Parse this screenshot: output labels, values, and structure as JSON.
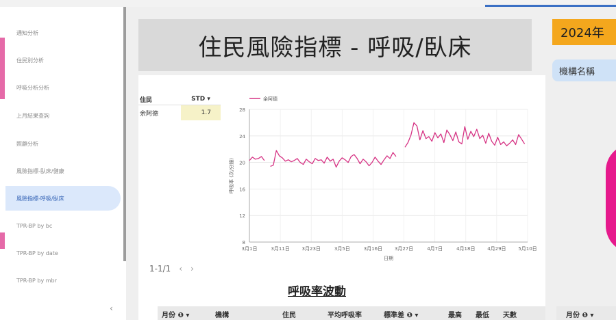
{
  "sidebar": {
    "items": [
      {
        "label": "通知分析"
      },
      {
        "label": "住民別分析"
      },
      {
        "label": "呼吸分析分析"
      },
      {
        "label": "上月結果查詢"
      },
      {
        "label": "照顧分析"
      },
      {
        "label": "風險指標-臥床/健康"
      },
      {
        "label": "風險指標-呼吸/臥床"
      },
      {
        "label": "TPR-BP by bc"
      },
      {
        "label": "TPR-BP by date"
      },
      {
        "label": "TPR-BP by mbr"
      }
    ],
    "collapse_icon": "‹"
  },
  "header": {
    "title": "住民風險指標 - 呼吸/臥床",
    "year": "2024年",
    "org_button": "機構名稱"
  },
  "mini_table": {
    "headers": [
      "住民",
      "STD ▾"
    ],
    "rows": [
      {
        "name": "余阿德",
        "std": "1.7"
      }
    ]
  },
  "pager": {
    "label": "1-1/1",
    "prev": "‹",
    "next": "›"
  },
  "chart_data": {
    "type": "line",
    "legend": "余阿德",
    "xlabel": "日期",
    "ylabel": "呼吸率 (次/分鐘)",
    "ylim": [
      8,
      28
    ],
    "yticks": [
      "8",
      "12",
      "16",
      "20",
      "24",
      "28"
    ],
    "xticks": [
      "3月1日",
      "3月11日",
      "3月23日",
      "3月5日",
      "3月16日",
      "3月27日",
      "4月7日",
      "4月18日",
      "4月29日",
      "5月10日"
    ],
    "segments": [
      [
        [
          0,
          20.3
        ],
        [
          1,
          20.8
        ],
        [
          2,
          20.5
        ],
        [
          3,
          20.6
        ],
        [
          4,
          20.9
        ],
        [
          5,
          20.3
        ]
      ],
      [
        [
          7,
          19.4
        ],
        [
          8,
          19.6
        ],
        [
          9,
          21.8
        ],
        [
          10,
          21.0
        ],
        [
          11,
          20.7
        ],
        [
          12,
          20.2
        ],
        [
          13,
          20.4
        ],
        [
          14,
          20.1
        ],
        [
          15,
          20.3
        ],
        [
          16,
          20.6
        ],
        [
          17,
          20.0
        ],
        [
          18,
          19.7
        ],
        [
          19,
          20.5
        ],
        [
          20,
          20.1
        ],
        [
          21,
          19.8
        ],
        [
          22,
          20.6
        ],
        [
          23,
          20.3
        ],
        [
          24,
          20.4
        ],
        [
          25,
          19.9
        ],
        [
          26,
          20.8
        ],
        [
          27,
          20.2
        ],
        [
          28,
          20.5
        ],
        [
          29,
          19.3
        ],
        [
          30,
          20.2
        ],
        [
          31,
          20.7
        ],
        [
          32,
          20.4
        ],
        [
          33,
          20.0
        ],
        [
          34,
          20.9
        ],
        [
          35,
          21.2
        ],
        [
          36,
          20.6
        ],
        [
          37,
          19.8
        ],
        [
          38,
          20.5
        ],
        [
          39,
          20.1
        ],
        [
          40,
          19.5
        ],
        [
          41,
          20.0
        ],
        [
          42,
          20.8
        ],
        [
          43,
          20.2
        ],
        [
          44,
          19.7
        ],
        [
          45,
          20.4
        ],
        [
          46,
          21.0
        ],
        [
          47,
          20.6
        ],
        [
          48,
          21.5
        ],
        [
          49,
          20.9
        ]
      ],
      [
        [
          52,
          22.3
        ],
        [
          53,
          23.0
        ],
        [
          54,
          24.1
        ],
        [
          55,
          26.0
        ],
        [
          56,
          25.5
        ],
        [
          57,
          23.4
        ],
        [
          58,
          24.8
        ],
        [
          59,
          23.6
        ],
        [
          60,
          23.9
        ],
        [
          61,
          23.2
        ],
        [
          62,
          24.5
        ],
        [
          63,
          23.7
        ],
        [
          64,
          24.3
        ],
        [
          65,
          23.0
        ],
        [
          66,
          24.9
        ],
        [
          67,
          24.2
        ],
        [
          68,
          23.3
        ],
        [
          69,
          24.6
        ],
        [
          70,
          23.1
        ],
        [
          71,
          22.8
        ],
        [
          72,
          25.4
        ],
        [
          73,
          23.5
        ],
        [
          74,
          24.7
        ],
        [
          75,
          23.9
        ],
        [
          76,
          25.0
        ],
        [
          77,
          23.6
        ],
        [
          78,
          24.1
        ],
        [
          79,
          22.9
        ],
        [
          80,
          24.4
        ],
        [
          81,
          23.2
        ],
        [
          82,
          22.6
        ],
        [
          83,
          23.8
        ],
        [
          84,
          22.7
        ],
        [
          85,
          23.1
        ],
        [
          86,
          22.5
        ],
        [
          87,
          22.9
        ],
        [
          88,
          23.4
        ],
        [
          89,
          22.7
        ],
        [
          90,
          24.2
        ],
        [
          91,
          23.5
        ],
        [
          92,
          22.8
        ]
      ]
    ],
    "xmax": 93,
    "grid": true,
    "color": "#d63384"
  },
  "wave_section": {
    "title": "呼吸率波動"
  },
  "table": {
    "headers": [
      "月份 ❶ ▾",
      "機構",
      "住民",
      "平均呼吸率",
      "標準差 ❶ ▾",
      "最高",
      "最低",
      "天數"
    ],
    "right_header": "月份 ❶ ▾"
  }
}
